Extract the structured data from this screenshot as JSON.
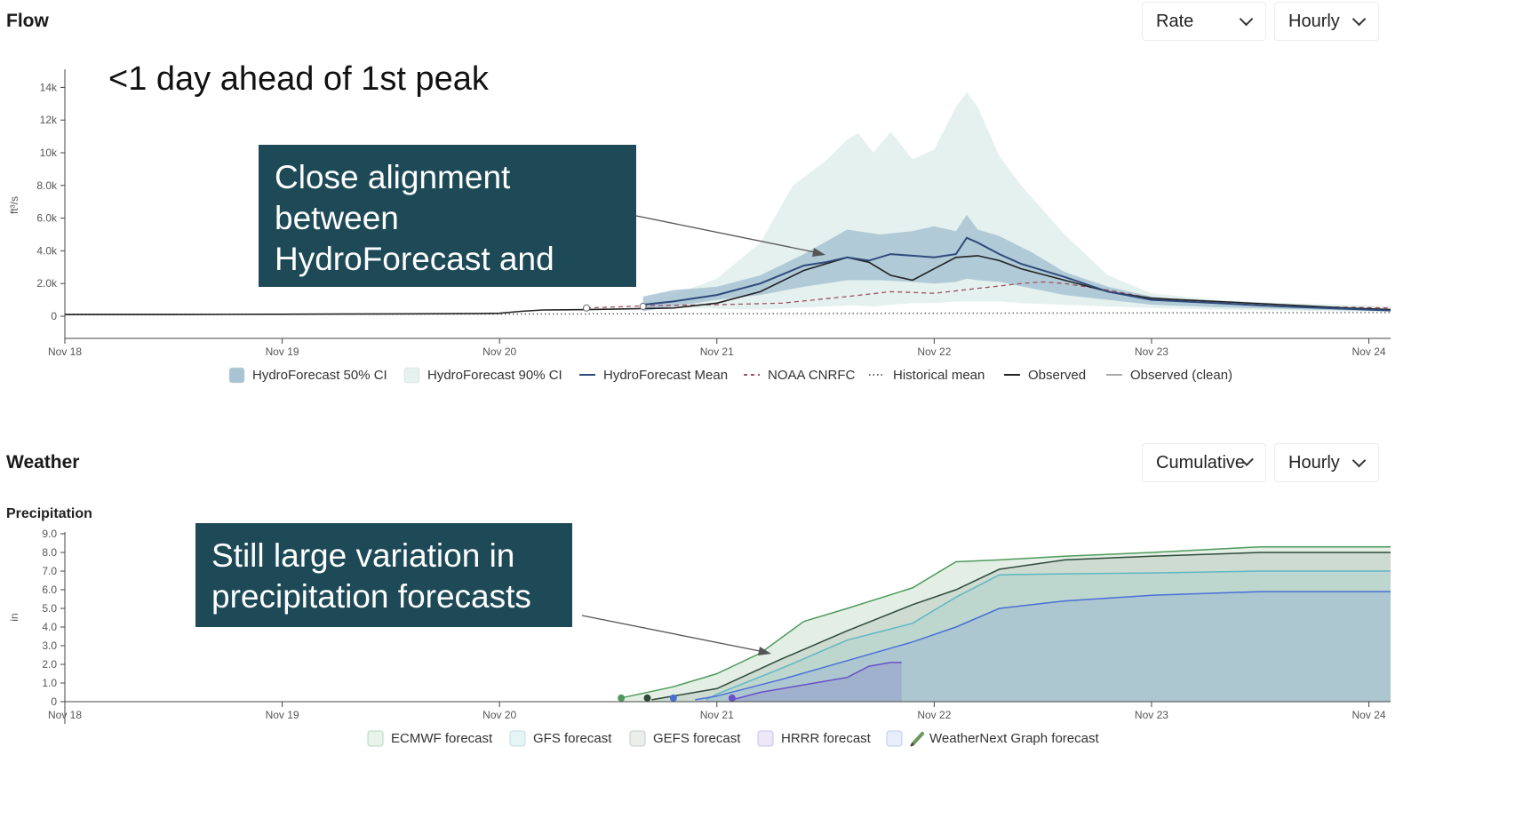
{
  "flow": {
    "title": "Flow",
    "rate_select": "Rate",
    "interval_select": "Hourly",
    "headline": "<1 day ahead of 1st peak",
    "callout": "Close alignment between HydroForecast and observations"
  },
  "weather": {
    "title": "Weather",
    "mode_select": "Cumulative",
    "interval_select": "Hourly",
    "subtitle": "Precipitation",
    "callout": "Still large variation in precipitation forecasts"
  },
  "chart_data": [
    {
      "type": "area",
      "title": "Flow",
      "ylabel": "ft³/s",
      "x_ticks": [
        "Nov 18",
        "Nov 19",
        "Nov 20",
        "Nov 21",
        "Nov 22",
        "Nov 23",
        "Nov 24"
      ],
      "y_ticks": [
        "0",
        "2.0k",
        "4.0k",
        "6.0k",
        "8.0k",
        "10k",
        "12k",
        "14k"
      ],
      "xlim": [
        0,
        6.1
      ],
      "ylim": [
        0,
        15000
      ],
      "legend": [
        "HydroForecast 50% CI",
        "HydroForecast 90% CI",
        "HydroForecast Mean",
        "NOAA CNRFC",
        "Historical mean",
        "Observed",
        "Observed (clean)"
      ],
      "legend_placement": "bottom",
      "colors": {
        "ci50": "#a8c3d3",
        "ci90": "#e4f1ee",
        "mean": "#2e4a7a",
        "noaa": "#a05060",
        "hist": "#666666",
        "obs": "#222222",
        "clean": "#aaaaaa"
      },
      "series": [
        {
          "name": "HydroForecast 90% CI",
          "kind": "band",
          "x": [
            2.66,
            2.8,
            3.0,
            3.2,
            3.35,
            3.5,
            3.6,
            3.65,
            3.72,
            3.8,
            3.9,
            4.0,
            4.1,
            4.15,
            4.2,
            4.3,
            4.4,
            4.6,
            4.8,
            5.0,
            5.3,
            5.6,
            5.9,
            6.1
          ],
          "upper": [
            800,
            1300,
            2300,
            4500,
            8000,
            9500,
            10800,
            11200,
            10000,
            11300,
            9600,
            10200,
            12800,
            13700,
            12800,
            9800,
            8000,
            5000,
            2500,
            1400,
            1000,
            800,
            700,
            600
          ],
          "lower": [
            500,
            550,
            450,
            400,
            500,
            600,
            650,
            650,
            600,
            700,
            800,
            800,
            900,
            900,
            900,
            900,
            800,
            700,
            600,
            500,
            400,
            350,
            300,
            250
          ]
        },
        {
          "name": "HydroForecast 50% CI",
          "kind": "band",
          "x": [
            2.66,
            2.8,
            3.0,
            3.2,
            3.4,
            3.6,
            3.75,
            3.9,
            4.0,
            4.1,
            4.15,
            4.2,
            4.3,
            4.45,
            4.6,
            4.8,
            5.0,
            5.3,
            5.6,
            5.9,
            6.1
          ],
          "upper": [
            1200,
            1600,
            1800,
            2500,
            3800,
            5300,
            5000,
            5200,
            5500,
            5200,
            6200,
            5300,
            4900,
            3900,
            2700,
            1800,
            1200,
            800,
            600,
            500,
            400
          ],
          "lower": [
            300,
            600,
            1000,
            1300,
            1800,
            2200,
            2200,
            2100,
            2000,
            2100,
            2300,
            2200,
            2100,
            1700,
            1300,
            1000,
            700,
            550,
            450,
            350,
            300
          ]
        },
        {
          "name": "Historical mean",
          "kind": "line",
          "x": [
            0,
            1,
            2,
            3,
            4,
            5,
            6.1
          ],
          "y": [
            120,
            120,
            130,
            150,
            180,
            200,
            220
          ]
        },
        {
          "name": "NOAA CNRFC",
          "kind": "line",
          "x": [
            2.4,
            2.7,
            3.0,
            3.3,
            3.6,
            3.8,
            4.0,
            4.2,
            4.4,
            4.5,
            4.6,
            4.8,
            5.0,
            5.3,
            5.6,
            5.9,
            6.1
          ],
          "y": [
            500,
            650,
            700,
            800,
            1200,
            1500,
            1400,
            1700,
            2000,
            2100,
            2000,
            1600,
            1100,
            800,
            600,
            550,
            500
          ]
        },
        {
          "name": "Observed",
          "kind": "line",
          "x": [
            0,
            0.5,
            1.0,
            1.5,
            1.9,
            2.0,
            2.1,
            2.2,
            2.4,
            2.6,
            2.8,
            3.0,
            3.2,
            3.4,
            3.6,
            3.7,
            3.8,
            3.9,
            4.0,
            4.1,
            4.2,
            4.3,
            4.4,
            4.6,
            4.8,
            5.0,
            5.3,
            5.6,
            5.9,
            6.1
          ],
          "y": [
            100,
            100,
            120,
            140,
            160,
            180,
            300,
            380,
            400,
            450,
            500,
            800,
            1500,
            2800,
            3600,
            3300,
            2500,
            2200,
            2900,
            3600,
            3700,
            3400,
            2900,
            2200,
            1500,
            1100,
            900,
            700,
            500,
            400
          ]
        },
        {
          "name": "HydroForecast Mean",
          "kind": "line",
          "x": [
            2.66,
            2.8,
            3.0,
            3.2,
            3.4,
            3.5,
            3.6,
            3.65,
            3.7,
            3.8,
            3.9,
            4.0,
            4.1,
            4.15,
            4.2,
            4.3,
            4.4,
            4.6,
            4.8,
            5.0,
            5.3,
            5.6,
            5.9,
            6.1
          ],
          "y": [
            700,
            900,
            1300,
            2000,
            3100,
            3300,
            3600,
            3500,
            3400,
            3800,
            3700,
            3600,
            3800,
            4800,
            4500,
            3800,
            3200,
            2400,
            1500,
            1000,
            800,
            600,
            450,
            350
          ]
        }
      ],
      "forecast_markers": [
        {
          "x": 2.4,
          "y": 500
        },
        {
          "x": 2.66,
          "y": 600
        }
      ]
    },
    {
      "type": "area",
      "title": "Precipitation",
      "ylabel": "in",
      "x_ticks": [
        "Nov 18",
        "Nov 19",
        "Nov 20",
        "Nov 21",
        "Nov 22",
        "Nov 23",
        "Nov 24"
      ],
      "y_ticks": [
        "0",
        "1.0",
        "2.0",
        "3.0",
        "4.0",
        "5.0",
        "6.0",
        "7.0",
        "8.0",
        "9.0"
      ],
      "xlim": [
        0,
        6.1
      ],
      "ylim": [
        0,
        9
      ],
      "legend": [
        "ECMWF forecast",
        "GFS forecast",
        "GEFS forecast",
        "HRRR forecast",
        "WeatherNext Graph forecast"
      ],
      "legend_placement": "bottom",
      "colors": {
        "ecmwf": "#4e9a5b",
        "gfs": "#5fb7c5",
        "gefs": "#2f4a3a",
        "hrrr": "#6a4fc8",
        "wng": "#4a6fd6"
      },
      "series": [
        {
          "name": "WeatherNext Graph forecast",
          "kind": "area",
          "x": [
            2.9,
            3.0,
            3.3,
            3.6,
            3.9,
            4.1,
            4.3,
            4.6,
            5.0,
            5.5,
            6.1
          ],
          "y": [
            0.1,
            0.3,
            1.2,
            2.2,
            3.2,
            4.0,
            5.0,
            5.4,
            5.7,
            5.9,
            5.9
          ]
        },
        {
          "name": "GFS forecast",
          "kind": "area",
          "x": [
            2.95,
            3.0,
            3.3,
            3.6,
            3.9,
            4.1,
            4.3,
            4.6,
            5.0,
            5.5,
            6.1
          ],
          "y": [
            0.1,
            0.4,
            1.8,
            3.3,
            4.2,
            5.6,
            6.8,
            6.85,
            6.9,
            7.0,
            7.0
          ]
        },
        {
          "name": "GEFS forecast",
          "kind": "area",
          "x": [
            2.7,
            3.0,
            3.3,
            3.6,
            3.9,
            4.1,
            4.3,
            4.6,
            5.0,
            5.5,
            6.1
          ],
          "y": [
            0.1,
            0.7,
            2.3,
            3.8,
            5.2,
            6.0,
            7.1,
            7.6,
            7.8,
            8.0,
            8.0
          ]
        },
        {
          "name": "ECMWF forecast",
          "kind": "area",
          "x": [
            2.56,
            2.8,
            3.0,
            3.2,
            3.4,
            3.6,
            3.9,
            4.1,
            4.3,
            4.6,
            5.0,
            5.5,
            6.1
          ],
          "y": [
            0.2,
            0.8,
            1.5,
            2.6,
            4.3,
            5.0,
            6.1,
            7.5,
            7.6,
            7.8,
            8.0,
            8.3,
            8.3
          ]
        },
        {
          "name": "HRRR forecast",
          "kind": "area",
          "x": [
            3.07,
            3.2,
            3.4,
            3.6,
            3.7,
            3.8,
            3.85
          ],
          "y": [
            0.1,
            0.5,
            0.9,
            1.3,
            1.9,
            2.1,
            2.1
          ]
        }
      ],
      "start_markers": [
        {
          "x": 2.56,
          "y": 0.1,
          "color": "#4e9a5b"
        },
        {
          "x": 2.68,
          "y": 0.1,
          "color": "#2f4a3a"
        },
        {
          "x": 2.8,
          "y": 0.1,
          "color": "#4a6fd6"
        },
        {
          "x": 3.07,
          "y": 0.1,
          "color": "#6a4fc8"
        }
      ]
    }
  ]
}
